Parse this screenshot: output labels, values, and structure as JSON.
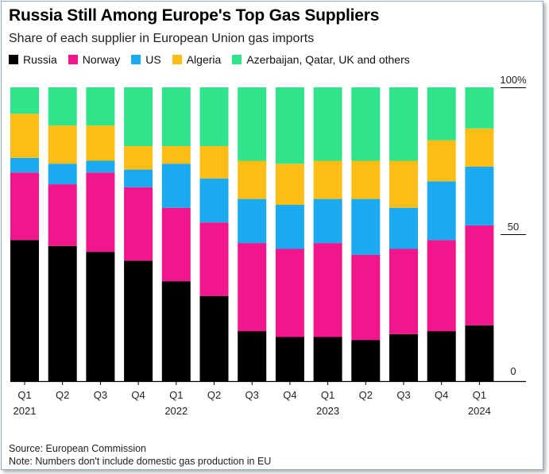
{
  "title": "Russia Still Among Europe's Top Gas Suppliers",
  "subtitle": "Share of each supplier in European Union gas imports",
  "legend": [
    {
      "label": "Russia",
      "color": "#000000"
    },
    {
      "label": "Norway",
      "color": "#f2158c"
    },
    {
      "label": "US",
      "color": "#1ba9ef"
    },
    {
      "label": "Algeria",
      "color": "#fcbd16"
    },
    {
      "label": "Azerbaijan, Qatar, UK and others",
      "color": "#2fe48b"
    }
  ],
  "footer": {
    "source": "Source: European Commission",
    "note": "Note: Numbers don't include domestic gas production in EU"
  },
  "chart_data": {
    "type": "bar",
    "stacked": true,
    "categories": [
      "Q1 2021",
      "Q2",
      "Q3",
      "Q4",
      "Q1 2022",
      "Q2",
      "Q3",
      "Q4",
      "Q1 2023",
      "Q2",
      "Q3",
      "Q4",
      "Q1 2024"
    ],
    "x_tick_labels": [
      [
        "Q1",
        "2021"
      ],
      [
        "Q2",
        ""
      ],
      [
        "Q3",
        ""
      ],
      [
        "Q4",
        ""
      ],
      [
        "Q1",
        "2022"
      ],
      [
        "Q2",
        ""
      ],
      [
        "Q3",
        ""
      ],
      [
        "Q4",
        ""
      ],
      [
        "Q1",
        "2023"
      ],
      [
        "Q2",
        ""
      ],
      [
        "Q3",
        ""
      ],
      [
        "Q4",
        ""
      ],
      [
        "Q1",
        "2024"
      ]
    ],
    "series": [
      {
        "name": "Russia",
        "color": "#000000",
        "values": [
          48,
          46,
          44,
          41,
          34,
          29,
          17,
          15,
          15,
          14,
          16,
          17,
          19
        ]
      },
      {
        "name": "Norway",
        "color": "#f2158c",
        "values": [
          23,
          21,
          27,
          25,
          25,
          25,
          30,
          30,
          32,
          29,
          29,
          31,
          34
        ]
      },
      {
        "name": "US",
        "color": "#1ba9ef",
        "values": [
          5,
          7,
          4,
          6,
          15,
          15,
          15,
          15,
          15,
          19,
          14,
          20,
          20
        ]
      },
      {
        "name": "Algeria",
        "color": "#fcbd16",
        "values": [
          15,
          13,
          12,
          8,
          6,
          11,
          13,
          14,
          13,
          13,
          16,
          14,
          13
        ]
      },
      {
        "name": "Azerbaijan, Qatar, UK and others",
        "color": "#2fe48b",
        "values": [
          9,
          13,
          13,
          20,
          20,
          20,
          25,
          26,
          25,
          25,
          25,
          18,
          14
        ]
      }
    ],
    "ylim": [
      0,
      100
    ],
    "y_ticks": [
      {
        "value": 100,
        "label": "100%"
      },
      {
        "value": 50,
        "label": "50"
      },
      {
        "value": 0,
        "label": "0"
      }
    ],
    "grid": false,
    "legend_position": "top-left"
  }
}
